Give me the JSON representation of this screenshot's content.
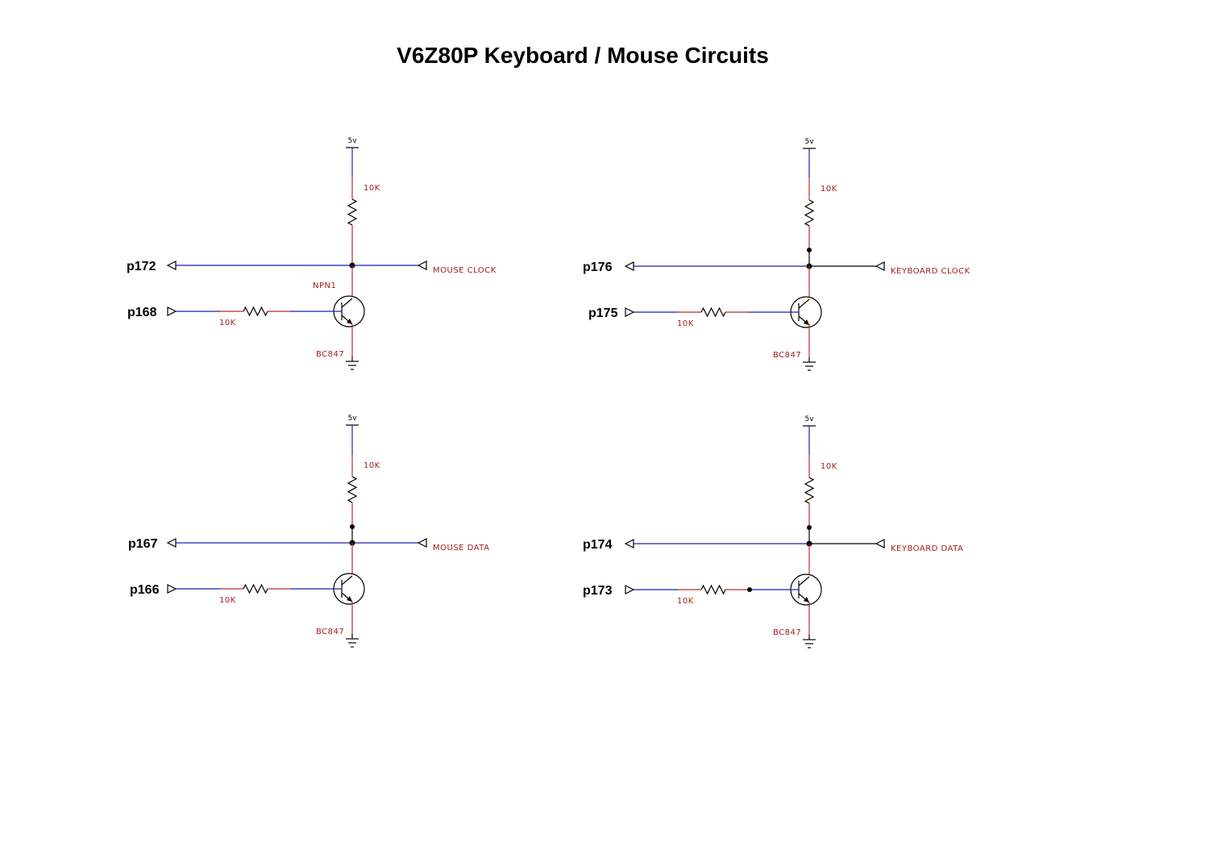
{
  "title": "V6Z80P Keyboard / Mouse Circuits",
  "colors": {
    "wire": "#1e1eb4",
    "lead": "#c02828",
    "label": "#a01e1e",
    "symbol": "#000000"
  },
  "circuits": [
    {
      "id": "mouse-clock",
      "supply": "5v",
      "pullup_value": "10K",
      "output_pin": "p172",
      "signal_label": "MOUSE CLOCK",
      "transistor_ref": "NPN1",
      "input_pin": "p168",
      "base_resistor_value": "10K",
      "transistor_part": "BC847"
    },
    {
      "id": "keyboard-clock",
      "supply": "5v",
      "pullup_value": "10K",
      "output_pin": "p176",
      "signal_label": "KEYBOARD CLOCK",
      "transistor_ref": "",
      "input_pin": "p175",
      "base_resistor_value": "10K",
      "transistor_part": "BC847"
    },
    {
      "id": "mouse-data",
      "supply": "5v",
      "pullup_value": "10K",
      "output_pin": "p167",
      "signal_label": "MOUSE DATA",
      "transistor_ref": "",
      "input_pin": "p166",
      "base_resistor_value": "10K",
      "transistor_part": "BC847"
    },
    {
      "id": "keyboard-data",
      "supply": "5v",
      "pullup_value": "10K",
      "output_pin": "p174",
      "signal_label": "KEYBOARD DATA",
      "transistor_ref": "",
      "input_pin": "p173",
      "base_resistor_value": "10K",
      "transistor_part": "BC847"
    }
  ]
}
